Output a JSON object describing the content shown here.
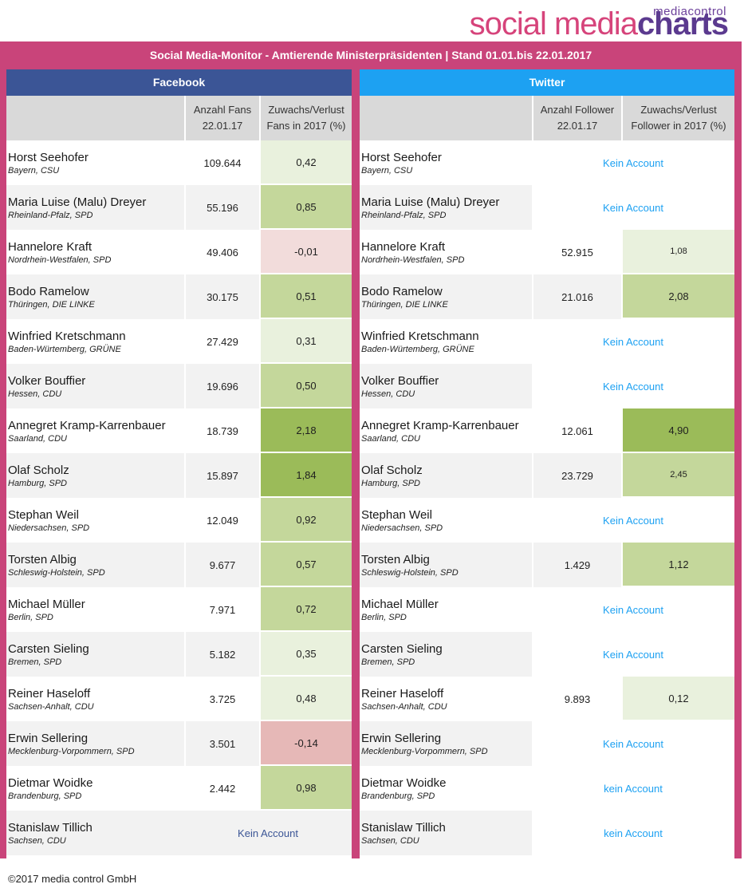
{
  "logo": {
    "brand_small": "mediacontrol",
    "brand_a": "social media",
    "brand_b": "charts"
  },
  "title": "Social Media-Monitor -  Amtierende Ministerpräsidenten | Stand 01.01.bis 22.01.2017",
  "colors": {
    "frame": "#c9447a",
    "facebook": "#3b5596",
    "twitter": "#1da1f2",
    "gain_light": "#e9f1dd",
    "gain_mid": "#c4d79b",
    "gain_strong": "#9bbb59",
    "loss_light": "#f2dcdb",
    "loss_mid": "#e6b8b7"
  },
  "facebook": {
    "header": "Facebook",
    "col_fans": "Anzahl Fans 22.01.17",
    "col_change": "Zuwachs/Verlust Fans in 2017 (%)",
    "rows": [
      {
        "name": "Horst Seehofer",
        "region": "Bayern, CSU",
        "fans": "109.644",
        "change": "0,42",
        "shade": "gain_light"
      },
      {
        "name": "Maria Luise (Malu) Dreyer",
        "region": "Rheinland-Pfalz, SPD",
        "fans": "55.196",
        "change": "0,85",
        "shade": "gain_mid"
      },
      {
        "name": "Hannelore Kraft",
        "region": "Nordrhein-Westfalen, SPD",
        "fans": "49.406",
        "change": "-0,01",
        "shade": "loss_light"
      },
      {
        "name": "Bodo Ramelow",
        "region": "Thüringen, DIE LINKE",
        "fans": "30.175",
        "change": "0,51",
        "shade": "gain_mid"
      },
      {
        "name": "Winfried Kretschmann",
        "region": "Baden-Würtemberg, GRÜNE",
        "fans": "27.429",
        "change": "0,31",
        "shade": "gain_light"
      },
      {
        "name": "Volker Bouffier",
        "region": "Hessen, CDU",
        "fans": "19.696",
        "change": "0,50",
        "shade": "gain_mid"
      },
      {
        "name": "Annegret Kramp-Karrenbauer",
        "region": "Saarland, CDU",
        "fans": "18.739",
        "change": "2,18",
        "shade": "gain_strong"
      },
      {
        "name": "Olaf Scholz",
        "region": "Hamburg, SPD",
        "fans": "15.897",
        "change": "1,84",
        "shade": "gain_strong"
      },
      {
        "name": "Stephan Weil",
        "region": "Niedersachsen, SPD",
        "fans": "12.049",
        "change": "0,92",
        "shade": "gain_mid"
      },
      {
        "name": "Torsten Albig",
        "region": "Schleswig-Holstein, SPD",
        "fans": "9.677",
        "change": "0,57",
        "shade": "gain_mid"
      },
      {
        "name": "Michael Müller",
        "region": "Berlin, SPD",
        "fans": "7.971",
        "change": "0,72",
        "shade": "gain_mid"
      },
      {
        "name": "Carsten Sieling",
        "region": "Bremen, SPD",
        "fans": "5.182",
        "change": "0,35",
        "shade": "gain_light"
      },
      {
        "name": "Reiner Haseloff",
        "region": "Sachsen-Anhalt, CDU",
        "fans": "3.725",
        "change": "0,48",
        "shade": "gain_light"
      },
      {
        "name": "Erwin Sellering",
        "region": "Mecklenburg-Vorpommern, SPD",
        "fans": "3.501",
        "change": "-0,14",
        "shade": "loss_mid"
      },
      {
        "name": "Dietmar Woidke",
        "region": "Brandenburg, SPD",
        "fans": "2.442",
        "change": "0,98",
        "shade": "gain_mid"
      },
      {
        "name": "Stanislaw Tillich",
        "region": "Sachsen, CDU",
        "no_account": "Kein Account"
      }
    ]
  },
  "twitter": {
    "header": "Twitter",
    "col_followers": "Anzahl Follower 22.01.17",
    "col_change": "Zuwachs/Verlust Follower in 2017 (%)",
    "rows": [
      {
        "name": "Horst Seehofer",
        "region": "Bayern, CSU",
        "no_account": "Kein Account"
      },
      {
        "name": "Maria Luise (Malu) Dreyer",
        "region": "Rheinland-Pfalz, SPD",
        "no_account": "Kein Account"
      },
      {
        "name": "Hannelore Kraft",
        "region": "Nordrhein-Westfalen, SPD",
        "followers": "52.915",
        "change": "1,08",
        "shade": "gain_light",
        "small": true
      },
      {
        "name": "Bodo Ramelow",
        "region": "Thüringen, DIE LINKE",
        "followers": "21.016",
        "change": "2,08",
        "shade": "gain_mid"
      },
      {
        "name": "Winfried Kretschmann",
        "region": "Baden-Würtemberg, GRÜNE",
        "no_account": "Kein Account"
      },
      {
        "name": "Volker Bouffier",
        "region": "Hessen, CDU",
        "no_account": "Kein Account"
      },
      {
        "name": "Annegret Kramp-Karrenbauer",
        "region": "Saarland, CDU",
        "followers": "12.061",
        "change": "4,90",
        "shade": "gain_strong"
      },
      {
        "name": "Olaf Scholz",
        "region": "Hamburg, SPD",
        "followers": "23.729",
        "change": "2,45",
        "shade": "gain_mid",
        "small": true
      },
      {
        "name": "Stephan Weil",
        "region": "Niedersachsen, SPD",
        "no_account": "Kein Account"
      },
      {
        "name": "Torsten Albig",
        "region": "Schleswig-Holstein, SPD",
        "followers": "1.429",
        "change": "1,12",
        "shade": "gain_mid"
      },
      {
        "name": "Michael Müller",
        "region": "Berlin, SPD",
        "no_account": "Kein Account"
      },
      {
        "name": "Carsten Sieling",
        "region": "Bremen, SPD",
        "no_account": "Kein Account"
      },
      {
        "name": "Reiner Haseloff",
        "region": "Sachsen-Anhalt, CDU",
        "followers": "9.893",
        "change": "0,12",
        "shade": "gain_light"
      },
      {
        "name": "Erwin Sellering",
        "region": "Mecklenburg-Vorpommern, SPD",
        "no_account": "Kein Account"
      },
      {
        "name": "Dietmar Woidke",
        "region": "Brandenburg, SPD",
        "no_account": "kein Account"
      },
      {
        "name": "Stanislaw Tillich",
        "region": "Sachsen, CDU",
        "no_account": "kein Account"
      }
    ]
  },
  "footer": "©2017 media control GmbH"
}
